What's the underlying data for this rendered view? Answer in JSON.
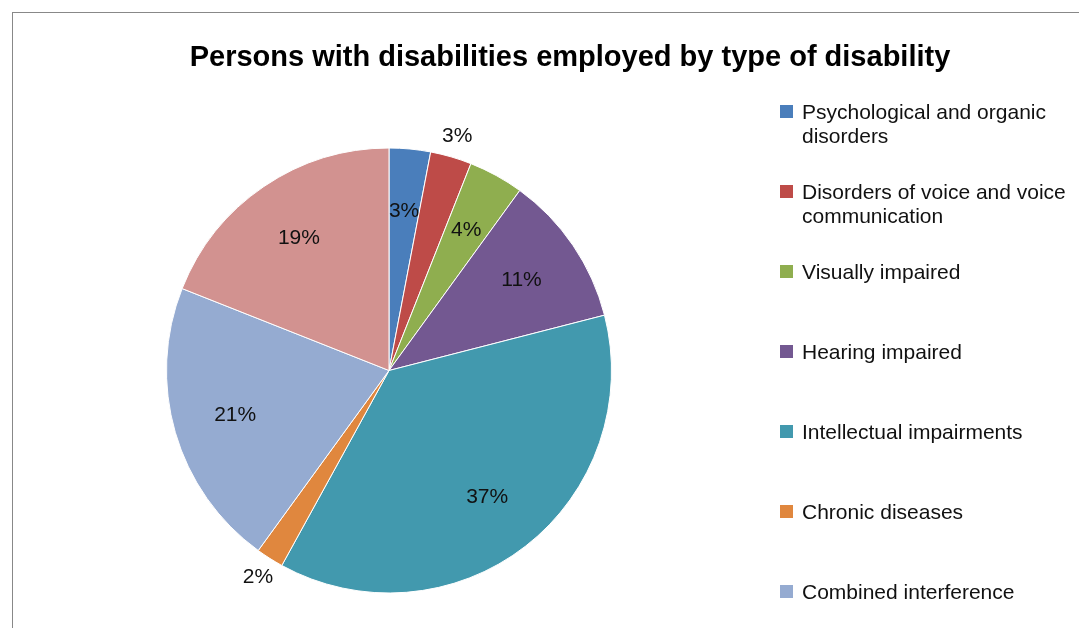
{
  "chart_data": {
    "type": "pie",
    "title": "Persons with disabilities employed by type of disability",
    "categories": [
      "Psychological and organic disorders",
      "Disorders of voice and voice communication",
      "Visually impaired",
      "Hearing impaired",
      "Intellectual impairments",
      "Chronic diseases",
      "Combined interference",
      null
    ],
    "values": [
      3,
      3,
      4,
      11,
      37,
      2,
      21,
      19
    ],
    "colors": [
      "#4a7ebb",
      "#be4b48",
      "#8fae4f",
      "#735891",
      "#4299ae",
      "#e0873e",
      "#95abd1",
      "#d29290"
    ],
    "value_labels": [
      "3%",
      "3%",
      "4%",
      "11%",
      "37%",
      "2%",
      "21%",
      "19%"
    ],
    "legend": "right"
  }
}
